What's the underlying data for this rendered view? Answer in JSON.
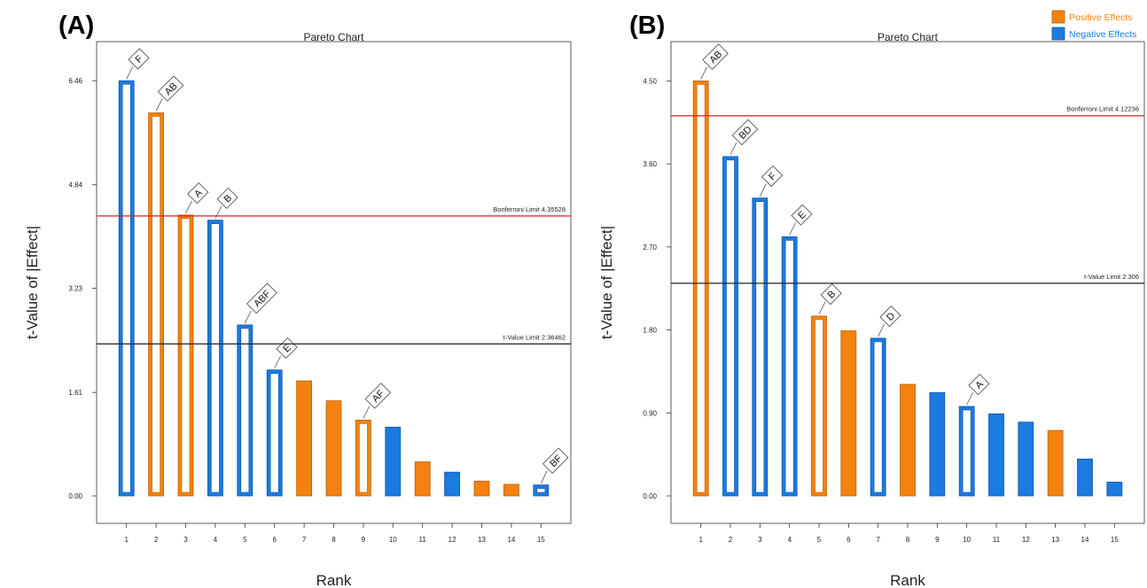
{
  "colors": {
    "positive": "#F5820F",
    "negative": "#1B7BE0",
    "bonferroni_line": "#E02020",
    "tvalue_line": "#222222",
    "positive_stroke": "#B85F08",
    "negative_stroke": "#0E55A8"
  },
  "legend": {
    "positive": "Positive Effects",
    "negative": "Negative Effects"
  },
  "chart_data": [
    {
      "panel_label": "(A)",
      "type": "bar",
      "title": "Pareto Chart",
      "xlabel": "Rank",
      "ylabel": "t-Value of |Effect|",
      "ylim": [
        0,
        6.6
      ],
      "yticks": [
        0.0,
        1.61,
        3.23,
        4.84,
        6.46
      ],
      "ytick_labels": [
        "0.00",
        "1.61",
        "3.23",
        "4.84",
        "6.46"
      ],
      "categories": [
        "1",
        "2",
        "3",
        "4",
        "5",
        "6",
        "7",
        "8",
        "9",
        "10",
        "11",
        "12",
        "13",
        "14",
        "15"
      ],
      "values": [
        6.46,
        5.96,
        4.37,
        4.29,
        2.66,
        1.96,
        1.79,
        1.48,
        1.18,
        1.07,
        0.53,
        0.37,
        0.23,
        0.18,
        0.17
      ],
      "effect_sign": [
        "negative",
        "positive",
        "positive",
        "negative",
        "negative",
        "negative",
        "positive",
        "positive",
        "positive",
        "negative",
        "positive",
        "negative",
        "positive",
        "positive",
        "negative"
      ],
      "labels": [
        "F",
        "AB",
        "A",
        "B",
        "ABF",
        "E",
        "",
        "",
        "AF",
        "",
        "",
        "",
        "",
        "",
        "BF"
      ],
      "reference_lines": [
        {
          "label": "Bonferroni Limit 4.35528",
          "value": 4.35528,
          "kind": "bonferroni"
        },
        {
          "label": "t-Value Limit 2.36462",
          "value": 2.36462,
          "kind": "tvalue"
        }
      ],
      "legend": false
    },
    {
      "panel_label": "(B)",
      "type": "bar",
      "title": "Pareto Chart",
      "xlabel": "Rank",
      "ylabel": "t-Value of |Effect|",
      "ylim": [
        0,
        4.6
      ],
      "yticks": [
        0.0,
        0.9,
        1.8,
        2.7,
        3.6,
        4.5
      ],
      "ytick_labels": [
        "0.00",
        "0.90",
        "1.80",
        "2.70",
        "3.60",
        "4.50"
      ],
      "categories": [
        "1",
        "2",
        "3",
        "4",
        "5",
        "6",
        "7",
        "8",
        "9",
        "10",
        "11",
        "12",
        "13",
        "14",
        "15"
      ],
      "values": [
        4.5,
        3.68,
        3.23,
        2.81,
        1.95,
        1.79,
        1.71,
        1.21,
        1.12,
        0.97,
        0.89,
        0.8,
        0.71,
        0.4,
        0.15
      ],
      "effect_sign": [
        "positive",
        "negative",
        "negative",
        "negative",
        "positive",
        "positive",
        "negative",
        "positive",
        "negative",
        "negative",
        "negative",
        "negative",
        "positive",
        "negative",
        "negative"
      ],
      "labels": [
        "AB",
        "BD",
        "F",
        "E",
        "B",
        "",
        "D",
        "",
        "",
        "A",
        "",
        "",
        "",
        "",
        ""
      ],
      "reference_lines": [
        {
          "label": "Bonferroni Limit 4.12236",
          "value": 4.12236,
          "kind": "bonferroni"
        },
        {
          "label": "t-Value Limit 2.306",
          "value": 2.306,
          "kind": "tvalue"
        }
      ],
      "legend": true,
      "legend_position": "top-right"
    }
  ]
}
